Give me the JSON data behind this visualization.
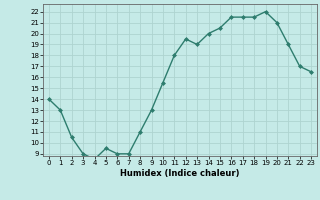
{
  "x": [
    0,
    1,
    2,
    3,
    4,
    5,
    6,
    7,
    8,
    9,
    10,
    11,
    12,
    13,
    14,
    15,
    16,
    17,
    18,
    19,
    20,
    21,
    22,
    23
  ],
  "y": [
    14,
    13,
    10.5,
    9,
    8.5,
    9.5,
    9,
    9,
    11,
    13,
    15.5,
    18,
    19.5,
    19,
    20,
    20.5,
    21.5,
    21.5,
    21.5,
    22,
    21,
    19,
    17,
    16.5
  ],
  "xlabel": "Humidex (Indice chaleur)",
  "xlim": [
    -0.5,
    23.5
  ],
  "ylim": [
    8.8,
    22.7
  ],
  "yticks": [
    9,
    10,
    11,
    12,
    13,
    14,
    15,
    16,
    17,
    18,
    19,
    20,
    21,
    22
  ],
  "xticks": [
    0,
    1,
    2,
    3,
    4,
    5,
    6,
    7,
    8,
    9,
    10,
    11,
    12,
    13,
    14,
    15,
    16,
    17,
    18,
    19,
    20,
    21,
    22,
    23
  ],
  "line_color": "#2e7d6e",
  "bg_color": "#c5eae7",
  "grid_color": "#aed4d0"
}
